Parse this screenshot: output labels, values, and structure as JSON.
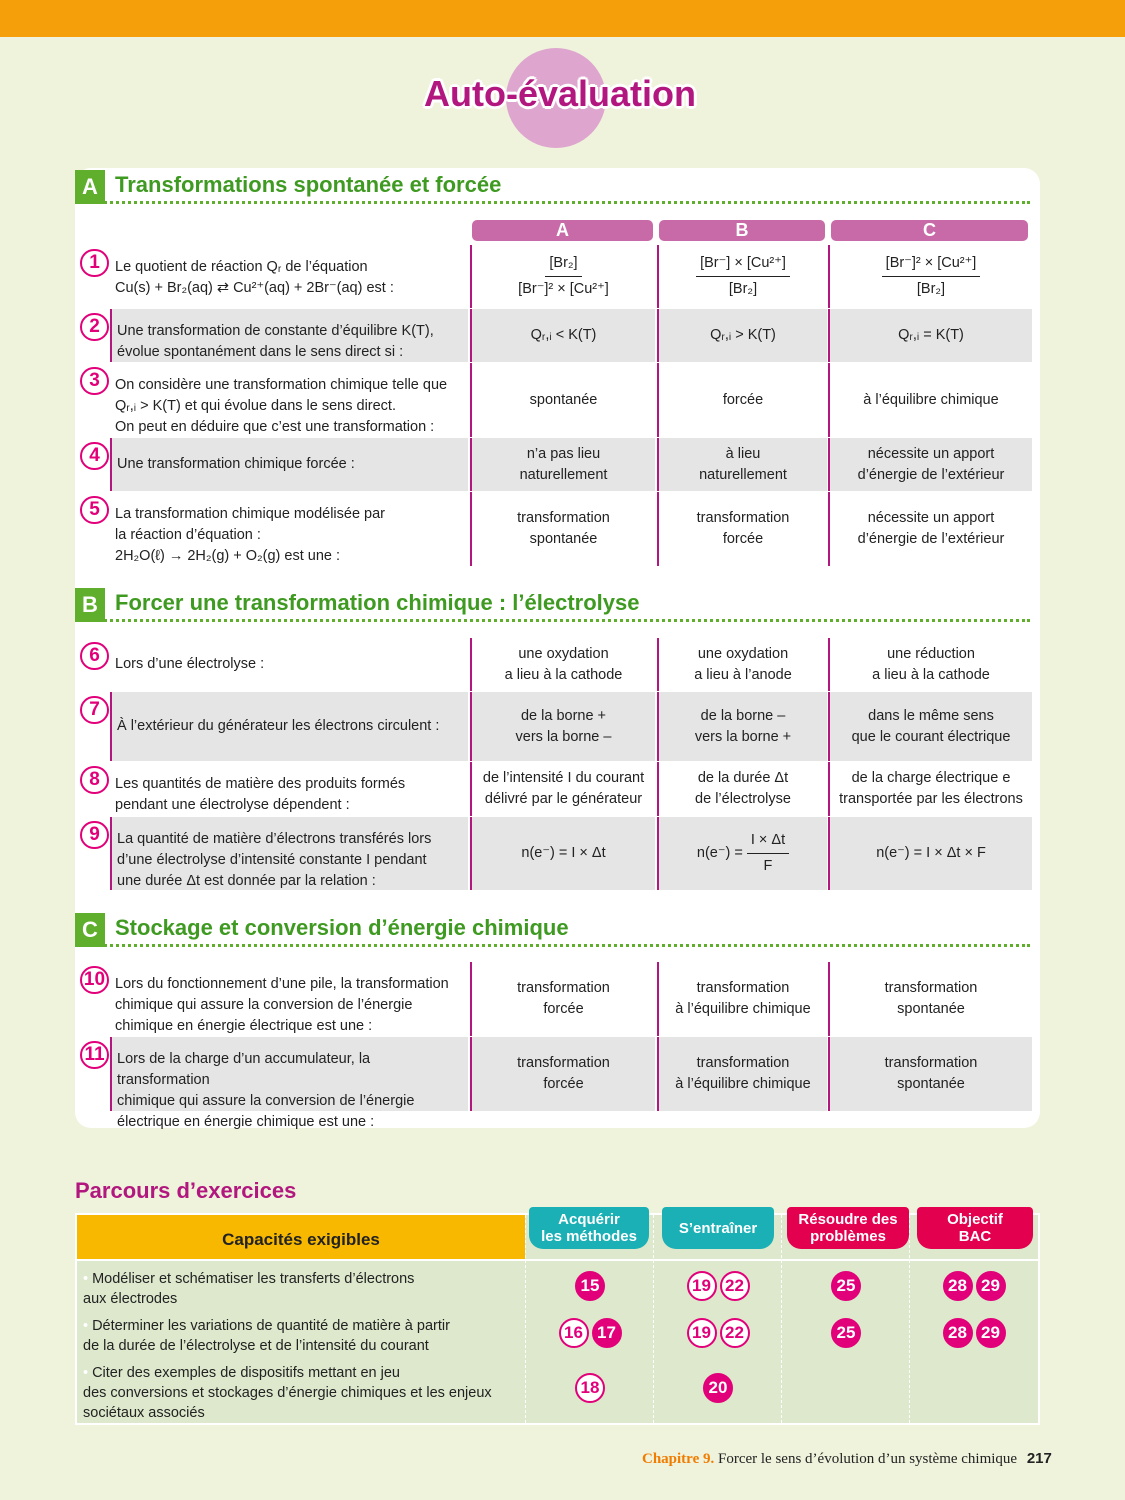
{
  "header": {
    "title": "Auto-évaluation",
    "accent": "#f5a00a"
  },
  "columns": [
    "A",
    "B",
    "C"
  ],
  "sections": [
    {
      "letter": "A",
      "title": "Transformations spontanée et forcée",
      "rows": [
        {
          "num": "1",
          "question": [
            "Le quotient de réaction Qᵣ de l’équation",
            "Cu(s) + Br₂(aq) ⇄ Cu²⁺(aq) + 2Br⁻(aq) est :"
          ],
          "options": [
            {
              "num": "[Br₂]",
              "den": "[Br⁻]² × [Cu²⁺]"
            },
            {
              "num": "[Br⁻] × [Cu²⁺]",
              "den": "[Br₂]"
            },
            {
              "num": "[Br⁻]² × [Cu²⁺]",
              "den": "[Br₂]"
            }
          ]
        },
        {
          "num": "2",
          "question": [
            "Une transformation de constante d’équilibre K(T),",
            "évolue spontanément dans le sens direct si :"
          ],
          "options": [
            {
              "lines": [
                "Qᵣ,ᵢ < K(T)"
              ]
            },
            {
              "lines": [
                "Qᵣ,ᵢ > K(T)"
              ]
            },
            {
              "lines": [
                "Qᵣ,ᵢ = K(T)"
              ]
            }
          ]
        },
        {
          "num": "3",
          "question": [
            "On considère une transformation chimique telle que",
            "Qᵣ,ᵢ > K(T) et qui évolue dans le sens direct.",
            "On peut en déduire que c’est une transformation :"
          ],
          "options": [
            {
              "lines": [
                "spontanée"
              ]
            },
            {
              "lines": [
                "forcée"
              ]
            },
            {
              "lines": [
                "à l’équilibre chimique"
              ]
            }
          ]
        },
        {
          "num": "4",
          "question": [
            "Une transformation chimique forcée :"
          ],
          "options": [
            {
              "lines": [
                "n’a pas lieu",
                "naturellement"
              ]
            },
            {
              "lines": [
                "à lieu",
                "naturellement"
              ]
            },
            {
              "lines": [
                "nécessite un apport",
                "d’énergie de l’extérieur"
              ]
            }
          ]
        },
        {
          "num": "5",
          "question": [
            "La transformation chimique modélisée par",
            "la réaction d’équation :",
            "2H₂O(ℓ) → 2H₂(g) + O₂(g) est une :"
          ],
          "options": [
            {
              "lines": [
                "transformation",
                "spontanée"
              ]
            },
            {
              "lines": [
                "transformation",
                "forcée"
              ]
            },
            {
              "lines": [
                "nécessite un apport",
                "d’énergie de l’extérieur"
              ]
            }
          ]
        }
      ]
    },
    {
      "letter": "B",
      "title": "Forcer une transformation chimique : l’électrolyse",
      "rows": [
        {
          "num": "6",
          "question": [
            "Lors d’une électrolyse :"
          ],
          "options": [
            {
              "lines": [
                "une oxydation",
                "a lieu à la cathode"
              ]
            },
            {
              "lines": [
                "une oxydation",
                "a lieu à l’anode"
              ]
            },
            {
              "lines": [
                "une réduction",
                "a lieu à la cathode"
              ]
            }
          ]
        },
        {
          "num": "7",
          "question": [
            "À l’extérieur du générateur les électrons circulent :"
          ],
          "options": [
            {
              "lines": [
                "de la borne +",
                "vers la borne –"
              ]
            },
            {
              "lines": [
                "de la borne –",
                "vers la borne +"
              ]
            },
            {
              "lines": [
                "dans le même sens",
                "que le courant électrique"
              ]
            }
          ]
        },
        {
          "num": "8",
          "question": [
            "Les quantités de matière des produits formés",
            "pendant une électrolyse dépendent :"
          ],
          "options": [
            {
              "lines": [
                "de l’intensité I du courant",
                "délivré par le générateur"
              ]
            },
            {
              "lines": [
                "de la durée Δt",
                "de l’électrolyse"
              ]
            },
            {
              "lines": [
                "de la charge électrique e",
                "transportée par les électrons"
              ]
            }
          ]
        },
        {
          "num": "9",
          "question": [
            "La quantité de matière d’électrons transférés lors",
            "d’une électrolyse d’intensité constante I pendant",
            "une durée Δt est donnée par la relation :"
          ],
          "options": [
            {
              "lines": [
                "n(e⁻) = I × Δt"
              ]
            },
            {
              "prefix": "n(e⁻) =",
              "num": "I × Δt",
              "den": "F"
            },
            {
              "lines": [
                "n(e⁻) = I × Δt × F"
              ]
            }
          ]
        }
      ]
    },
    {
      "letter": "C",
      "title": "Stockage et conversion d’énergie chimique",
      "rows": [
        {
          "num": "10",
          "question": [
            "Lors du fonctionnement d’une pile, la transformation",
            "chimique qui assure la conversion de l’énergie",
            "chimique en énergie électrique est une :"
          ],
          "options": [
            {
              "lines": [
                "transformation",
                "forcée"
              ]
            },
            {
              "lines": [
                "transformation",
                "à l’équilibre chimique"
              ]
            },
            {
              "lines": [
                "transformation",
                "spontanée"
              ]
            }
          ]
        },
        {
          "num": "11",
          "question": [
            "Lors de la charge d’un accumulateur, la transformation",
            "chimique qui assure la conversion de l’énergie",
            "électrique en énergie chimique est une :"
          ],
          "options": [
            {
              "lines": [
                "transformation",
                "forcée"
              ]
            },
            {
              "lines": [
                "transformation",
                "à l’équilibre chimique"
              ]
            },
            {
              "lines": [
                "transformation",
                "spontanée"
              ]
            }
          ]
        }
      ]
    }
  ],
  "parcours": {
    "title": "Parcours d’exercices",
    "cap_header": "Capacités exigibles",
    "tabs": [
      {
        "lines": [
          "Acquérir",
          "les méthodes"
        ],
        "color": "#1ab0b5"
      },
      {
        "lines": [
          "S’entraîner"
        ],
        "color": "#1ab0b5"
      },
      {
        "lines": [
          "Résoudre des",
          "problèmes"
        ],
        "color": "#e2004f"
      },
      {
        "lines": [
          "Objectif",
          "BAC"
        ],
        "color": "#e2004f"
      }
    ],
    "rows": [
      {
        "text": [
          "Modéliser et schématiser les transferts d’électrons",
          "aux électrodes"
        ],
        "cells": [
          [
            {
              "n": "15",
              "style": "filled"
            }
          ],
          [
            {
              "n": "19",
              "style": "outline"
            },
            {
              "n": "22",
              "style": "outline"
            }
          ],
          [
            {
              "n": "25",
              "style": "filled"
            }
          ],
          [
            {
              "n": "28",
              "style": "filled"
            },
            {
              "n": "29",
              "style": "filled"
            }
          ]
        ]
      },
      {
        "text": [
          "Déterminer les variations de quantité de matière à partir",
          "de la durée de l’électrolyse et de l’intensité du courant"
        ],
        "cells": [
          [
            {
              "n": "16",
              "style": "outline"
            },
            {
              "n": "17",
              "style": "filled"
            }
          ],
          [
            {
              "n": "19",
              "style": "outline"
            },
            {
              "n": "22",
              "style": "outline"
            }
          ],
          [
            {
              "n": "25",
              "style": "filled"
            }
          ],
          [
            {
              "n": "28",
              "style": "filled"
            },
            {
              "n": "29",
              "style": "filled"
            }
          ]
        ]
      },
      {
        "text": [
          "Citer des exemples de dispositifs mettant en jeu",
          "des conversions et stockages d’énergie chimiques et les enjeux",
          "sociétaux associés"
        ],
        "cells": [
          [
            {
              "n": "18",
              "style": "outline"
            }
          ],
          [
            {
              "n": "20",
              "style": "filled"
            }
          ],
          [],
          []
        ]
      }
    ]
  },
  "footer": {
    "chapter": "Chapitre 9.",
    "title": "Forcer le sens d’évolution d’un système chimique",
    "page": "217"
  }
}
